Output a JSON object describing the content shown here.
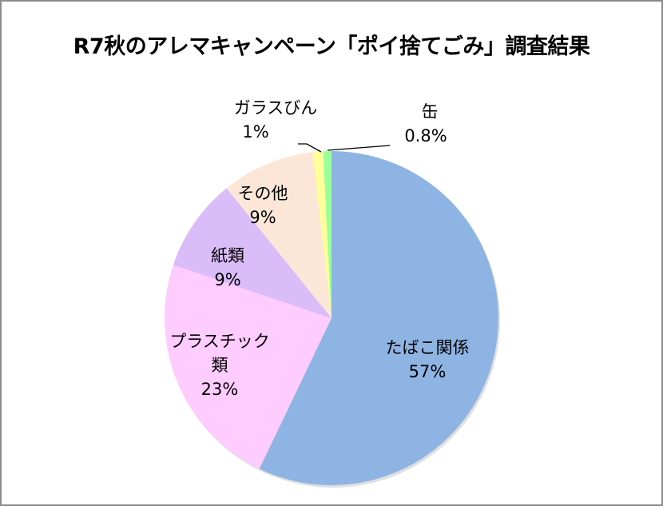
{
  "chart_data": {
    "type": "pie",
    "title": "R7秋のアレマキャンペーン「ポイ捨てごみ」調査結果",
    "start_angle_deg": 0,
    "direction": "clockwise",
    "categories": [
      "たばこ関係",
      "プラスチック類",
      "紙類",
      "その他",
      "ガラスびん",
      "缶"
    ],
    "values": [
      57,
      23,
      9,
      9,
      1,
      0.8
    ],
    "unit": "%",
    "data_labels": [
      "57%",
      "23%",
      "9%",
      "9%",
      "1%",
      "0.8%"
    ],
    "colors": [
      "#8EB4E3",
      "#FFCCFF",
      "#DABCF9",
      "#FCE6D8",
      "#FFFF99",
      "#99FF99"
    ],
    "legend": "none",
    "xlabel": "",
    "ylabel": ""
  },
  "labels": {
    "tobacco": {
      "name": "たばこ関係",
      "pct": "57%"
    },
    "plastic": {
      "name1": "プラスチック",
      "name2": "類",
      "pct": "23%"
    },
    "paper": {
      "name": "紙類",
      "pct": "9%"
    },
    "other": {
      "name": "その他",
      "pct": "9%"
    },
    "glass": {
      "name": "ガラスびん",
      "pct": "1%"
    },
    "can": {
      "name": "缶",
      "pct": "0.8%"
    }
  }
}
